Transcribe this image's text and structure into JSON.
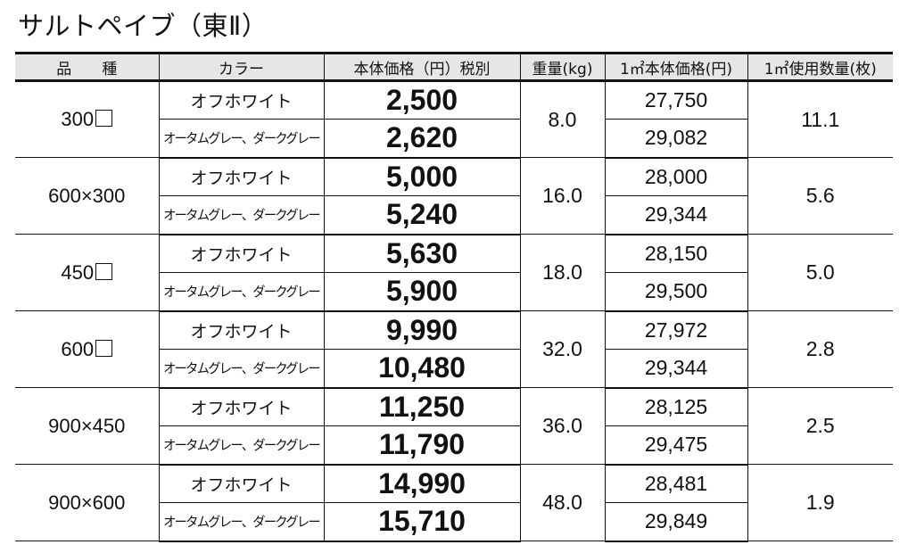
{
  "title": "サルトペイブ（東Ⅱ）",
  "table": {
    "headers": {
      "product": "品　　種",
      "color": "カラー",
      "price": "本体価格（円）税別",
      "weight": "重量(kg)",
      "price_per_sqm": "1㎡本体価格(円)",
      "qty_per_sqm": "1㎡使用数量(枚)"
    },
    "colors": {
      "off_white": "オフホワイト",
      "gray": "オータムグレー、ダークグレー"
    },
    "rows": [
      {
        "size": "300",
        "square": true,
        "weight": "8.0",
        "qty": "11.1",
        "variants": [
          {
            "color": "オフホワイト",
            "price": "2,500",
            "sqm_price": "27,750"
          },
          {
            "color": "オータムグレー、ダークグレー",
            "price": "2,620",
            "sqm_price": "29,082"
          }
        ]
      },
      {
        "size": "600×300",
        "square": false,
        "weight": "16.0",
        "qty": "5.6",
        "variants": [
          {
            "color": "オフホワイト",
            "price": "5,000",
            "sqm_price": "28,000"
          },
          {
            "color": "オータムグレー、ダークグレー",
            "price": "5,240",
            "sqm_price": "29,344"
          }
        ]
      },
      {
        "size": "450",
        "square": true,
        "weight": "18.0",
        "qty": "5.0",
        "variants": [
          {
            "color": "オフホワイト",
            "price": "5,630",
            "sqm_price": "28,150"
          },
          {
            "color": "オータムグレー、ダークグレー",
            "price": "5,900",
            "sqm_price": "29,500"
          }
        ]
      },
      {
        "size": "600",
        "square": true,
        "weight": "32.0",
        "qty": "2.8",
        "variants": [
          {
            "color": "オフホワイト",
            "price": "9,990",
            "sqm_price": "27,972"
          },
          {
            "color": "オータムグレー、ダークグレー",
            "price": "10,480",
            "sqm_price": "29,344"
          }
        ]
      },
      {
        "size": "900×450",
        "square": false,
        "weight": "36.0",
        "qty": "2.5",
        "variants": [
          {
            "color": "オフホワイト",
            "price": "11,250",
            "sqm_price": "28,125"
          },
          {
            "color": "オータムグレー、ダークグレー",
            "price": "11,790",
            "sqm_price": "29,475"
          }
        ]
      },
      {
        "size": "900×600",
        "square": false,
        "weight": "48.0",
        "qty": "1.9",
        "variants": [
          {
            "color": "オフホワイト",
            "price": "14,990",
            "sqm_price": "28,481"
          },
          {
            "color": "オータムグレー、ダークグレー",
            "price": "15,710",
            "sqm_price": "29,849"
          }
        ]
      }
    ]
  },
  "colors": {
    "header_bg": "#e6e6e6",
    "border": "#111111",
    "text": "#111111"
  }
}
